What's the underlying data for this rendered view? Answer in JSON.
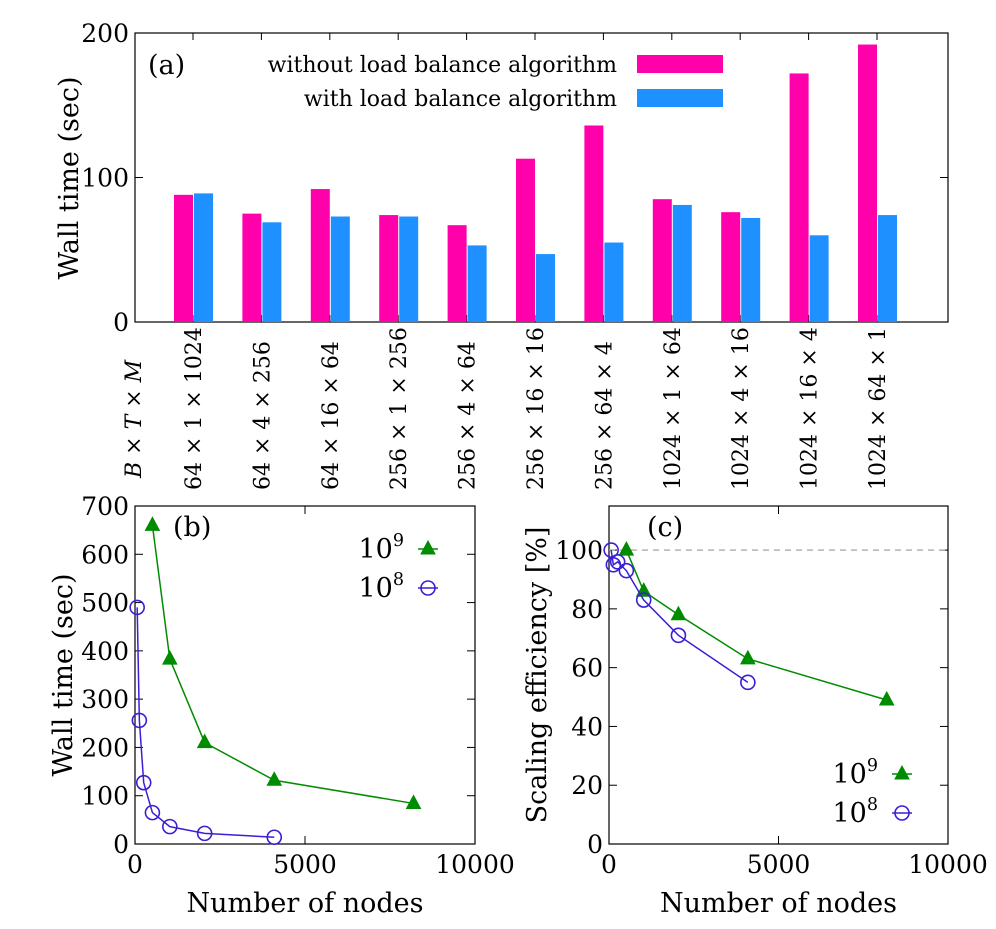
{
  "chart_data": [
    {
      "type": "bar",
      "panel_label": "(a)",
      "ylabel": "Wall time (sec)",
      "xlabel": "B × T × M",
      "ylim": [
        0,
        200
      ],
      "yticks": [
        "0",
        "100",
        "200"
      ],
      "categories": [
        "64 × 1 × 1024",
        "64 × 4 × 256",
        "64 × 16 × 64",
        "256 × 1 × 256",
        "256 × 4 × 64",
        "256 × 16 × 16",
        "256 × 64 × 4",
        "1024 × 1 × 64",
        "1024 × 4 × 16",
        "1024 × 16 × 4",
        "1024 × 64 × 1"
      ],
      "series": [
        {
          "name": "without load balance algorithm",
          "color": "#ff00aa",
          "values": [
            88,
            75,
            92,
            74,
            67,
            113,
            136,
            85,
            76,
            172,
            192
          ]
        },
        {
          "name": "with load balance algorithm",
          "color": "#1e90ff",
          "values": [
            89,
            69,
            73,
            73,
            53,
            47,
            55,
            81,
            72,
            60,
            74
          ]
        }
      ],
      "legend": "top-right"
    },
    {
      "type": "line",
      "panel_label": "(b)",
      "xlabel": "Number of nodes",
      "ylabel": "Wall time (sec)",
      "xlim": [
        0,
        10000
      ],
      "ylim": [
        0,
        700
      ],
      "xticks": [
        "0",
        "5000",
        "10000"
      ],
      "yticks": [
        "0",
        "100",
        "200",
        "300",
        "400",
        "500",
        "600",
        "700"
      ],
      "series": [
        {
          "name": "10^9",
          "label_base": "10",
          "label_exp": "9",
          "color": "#008c00",
          "marker": "triangle",
          "x": [
            512,
            1024,
            2048,
            4096,
            8192
          ],
          "y": [
            660,
            383,
            210,
            132,
            84
          ]
        },
        {
          "name": "10^8",
          "label_base": "10",
          "label_exp": "8",
          "color": "#3a1fd6",
          "marker": "circle",
          "x": [
            64,
            128,
            256,
            512,
            1024,
            2048,
            4096
          ],
          "y": [
            490,
            256,
            127,
            65,
            36,
            22,
            14
          ]
        }
      ],
      "legend": "top-right"
    },
    {
      "type": "line",
      "panel_label": "(c)",
      "xlabel": "Number of nodes",
      "ylabel": "Scaling efficiency [%]",
      "xlim": [
        0,
        10000
      ],
      "ylim": [
        0,
        115
      ],
      "xticks": [
        "0",
        "5000",
        "10000"
      ],
      "yticks": [
        "0",
        "20",
        "40",
        "60",
        "80",
        "100"
      ],
      "reference_line": 100,
      "series": [
        {
          "name": "10^9",
          "label_base": "10",
          "label_exp": "9",
          "color": "#008c00",
          "marker": "triangle",
          "x": [
            512,
            1024,
            2048,
            4096,
            8192
          ],
          "y": [
            100,
            86,
            78,
            63,
            49
          ]
        },
        {
          "name": "10^8",
          "label_base": "10",
          "label_exp": "8",
          "color": "#3a1fd6",
          "marker": "circle",
          "x": [
            64,
            128,
            256,
            512,
            1024,
            2048,
            4096
          ],
          "y": [
            100,
            95,
            96,
            93,
            83,
            71,
            55
          ]
        }
      ],
      "legend": "bottom-right"
    }
  ]
}
